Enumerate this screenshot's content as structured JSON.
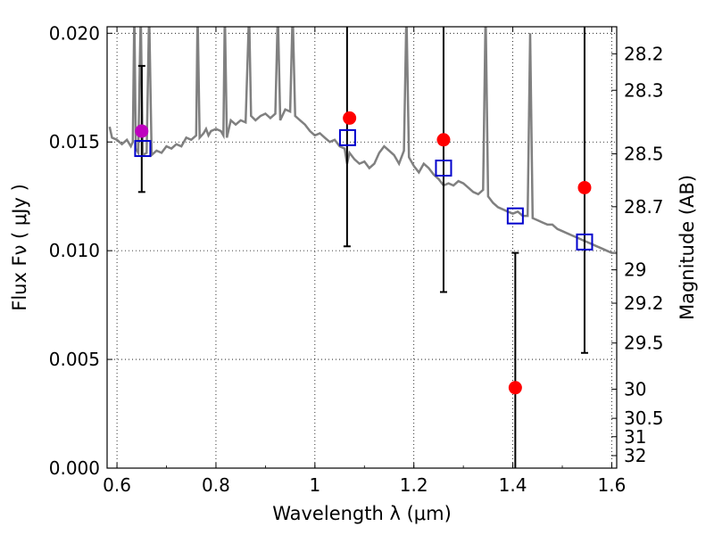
{
  "chart_data": {
    "type": "scatter",
    "xlabel": "Wavelength  λ (μm)",
    "ylabel": "Flux  Fν  ( μJy )",
    "y2label": "Magnitude (AB)",
    "xlim": [
      0.58,
      1.61
    ],
    "ylim": [
      0.0,
      0.0203
    ],
    "grid": true,
    "x_ticks": [
      {
        "value": 0.6,
        "label": "0.6"
      },
      {
        "value": 0.8,
        "label": "0.8"
      },
      {
        "value": 1.0,
        "label": "1"
      },
      {
        "value": 1.2,
        "label": "1.2"
      },
      {
        "value": 1.4,
        "label": "1.4"
      },
      {
        "value": 1.6,
        "label": "1.6"
      }
    ],
    "y_ticks": [
      {
        "value": 0.0,
        "label": "0.000"
      },
      {
        "value": 0.005,
        "label": "0.005"
      },
      {
        "value": 0.01,
        "label": "0.010"
      },
      {
        "value": 0.015,
        "label": "0.015"
      },
      {
        "value": 0.02,
        "label": "0.020"
      }
    ],
    "y2_ticks": [
      {
        "mag": 28.2,
        "label": "28.2"
      },
      {
        "mag": 28.3,
        "label": "28.3"
      },
      {
        "mag": 28.5,
        "label": "28.5"
      },
      {
        "mag": 28.7,
        "label": "28.7"
      },
      {
        "mag": 29.0,
        "label": "29"
      },
      {
        "mag": 29.2,
        "label": "29.2"
      },
      {
        "mag": 29.5,
        "label": "29.5"
      },
      {
        "mag": 30.0,
        "label": "30"
      },
      {
        "mag": 30.5,
        "label": "30.5"
      },
      {
        "mag": 31.0,
        "label": "31"
      },
      {
        "mag": 32.0,
        "label": "32"
      }
    ],
    "series": [
      {
        "type": "line",
        "color": "#808080",
        "points": [
          [
            0.585,
            0.0157
          ],
          [
            0.59,
            0.0152
          ],
          [
            0.6,
            0.0151
          ],
          [
            0.61,
            0.0149
          ],
          [
            0.62,
            0.0151
          ],
          [
            0.628,
            0.0148
          ],
          [
            0.632,
            0.015
          ],
          [
            0.635,
            0.021
          ],
          [
            0.638,
            0.0147
          ],
          [
            0.643,
            0.0145
          ],
          [
            0.648,
            0.021
          ],
          [
            0.652,
            0.0144
          ],
          [
            0.66,
            0.0145
          ],
          [
            0.665,
            0.021
          ],
          [
            0.67,
            0.0144
          ],
          [
            0.68,
            0.0146
          ],
          [
            0.69,
            0.0145
          ],
          [
            0.7,
            0.0148
          ],
          [
            0.71,
            0.0147
          ],
          [
            0.72,
            0.0149
          ],
          [
            0.73,
            0.0148
          ],
          [
            0.74,
            0.0152
          ],
          [
            0.75,
            0.0151
          ],
          [
            0.76,
            0.0153
          ],
          [
            0.763,
            0.021
          ],
          [
            0.767,
            0.0152
          ],
          [
            0.775,
            0.0154
          ],
          [
            0.78,
            0.0156
          ],
          [
            0.785,
            0.0153
          ],
          [
            0.79,
            0.0155
          ],
          [
            0.8,
            0.0156
          ],
          [
            0.81,
            0.0155
          ],
          [
            0.815,
            0.0153
          ],
          [
            0.818,
            0.021
          ],
          [
            0.822,
            0.0152
          ],
          [
            0.83,
            0.016
          ],
          [
            0.84,
            0.0158
          ],
          [
            0.85,
            0.016
          ],
          [
            0.86,
            0.0159
          ],
          [
            0.867,
            0.021
          ],
          [
            0.871,
            0.0162
          ],
          [
            0.88,
            0.016
          ],
          [
            0.89,
            0.0162
          ],
          [
            0.9,
            0.0163
          ],
          [
            0.91,
            0.0161
          ],
          [
            0.92,
            0.0163
          ],
          [
            0.925,
            0.021
          ],
          [
            0.93,
            0.016
          ],
          [
            0.94,
            0.0165
          ],
          [
            0.95,
            0.0164
          ],
          [
            0.955,
            0.021
          ],
          [
            0.96,
            0.0162
          ],
          [
            0.97,
            0.016
          ],
          [
            0.98,
            0.0158
          ],
          [
            0.99,
            0.0155
          ],
          [
            1.0,
            0.0153
          ],
          [
            1.01,
            0.0154
          ],
          [
            1.02,
            0.0152
          ],
          [
            1.03,
            0.015
          ],
          [
            1.04,
            0.0151
          ],
          [
            1.05,
            0.0148
          ],
          [
            1.06,
            0.0147
          ],
          [
            1.065,
            0.014
          ],
          [
            1.07,
            0.0145
          ],
          [
            1.08,
            0.0142
          ],
          [
            1.09,
            0.014
          ],
          [
            1.1,
            0.0141
          ],
          [
            1.11,
            0.0138
          ],
          [
            1.12,
            0.014
          ],
          [
            1.13,
            0.0145
          ],
          [
            1.14,
            0.0148
          ],
          [
            1.15,
            0.0146
          ],
          [
            1.16,
            0.0144
          ],
          [
            1.17,
            0.014
          ],
          [
            1.18,
            0.0146
          ],
          [
            1.185,
            0.021
          ],
          [
            1.19,
            0.0143
          ],
          [
            1.2,
            0.0139
          ],
          [
            1.21,
            0.0136
          ],
          [
            1.22,
            0.014
          ],
          [
            1.23,
            0.0138
          ],
          [
            1.24,
            0.0135
          ],
          [
            1.25,
            0.0133
          ],
          [
            1.26,
            0.013
          ],
          [
            1.27,
            0.0131
          ],
          [
            1.28,
            0.013
          ],
          [
            1.29,
            0.0132
          ],
          [
            1.3,
            0.0131
          ],
          [
            1.31,
            0.0129
          ],
          [
            1.32,
            0.0127
          ],
          [
            1.33,
            0.0126
          ],
          [
            1.34,
            0.0128
          ],
          [
            1.345,
            0.021
          ],
          [
            1.35,
            0.0125
          ],
          [
            1.36,
            0.0122
          ],
          [
            1.37,
            0.012
          ],
          [
            1.38,
            0.0119
          ],
          [
            1.39,
            0.0118
          ],
          [
            1.4,
            0.0117
          ],
          [
            1.41,
            0.0118
          ],
          [
            1.42,
            0.0116
          ],
          [
            1.43,
            0.0116
          ],
          [
            1.435,
            0.02
          ],
          [
            1.44,
            0.0115
          ],
          [
            1.45,
            0.0114
          ],
          [
            1.46,
            0.0113
          ],
          [
            1.47,
            0.0112
          ],
          [
            1.48,
            0.0112
          ],
          [
            1.49,
            0.011
          ],
          [
            1.5,
            0.0109
          ],
          [
            1.51,
            0.0108
          ],
          [
            1.52,
            0.0107
          ],
          [
            1.53,
            0.0106
          ],
          [
            1.54,
            0.0105
          ],
          [
            1.55,
            0.0104
          ],
          [
            1.56,
            0.0103
          ],
          [
            1.57,
            0.0102
          ],
          [
            1.58,
            0.0101
          ],
          [
            1.59,
            0.01
          ],
          [
            1.6,
            0.0099
          ],
          [
            1.61,
            0.0099
          ]
        ]
      },
      {
        "type": "errorbar",
        "color": "#000000",
        "items": [
          {
            "x": 0.65,
            "y": 0.0155,
            "yerr_low": 0.0127,
            "yerr_high": 0.0185
          },
          {
            "x": 1.065,
            "y": 0.0161,
            "yerr_low": 0.0102,
            "yerr_high": 0.0203
          },
          {
            "x": 1.26,
            "y": 0.0151,
            "yerr_low": 0.0081,
            "yerr_high": 0.0203
          },
          {
            "x": 1.405,
            "y": 0.0037,
            "yerr_low": 0.0,
            "yerr_high": 0.0099
          },
          {
            "x": 1.545,
            "y": 0.0129,
            "yerr_low": 0.0053,
            "yerr_high": 0.0203
          }
        ]
      },
      {
        "type": "scatter",
        "marker": "circle",
        "points": [
          {
            "x": 0.65,
            "y": 0.0155,
            "color": "#bf00bf"
          },
          {
            "x": 1.07,
            "y": 0.0161,
            "color": "#ff0000"
          },
          {
            "x": 1.26,
            "y": 0.0151,
            "color": "#ff0000"
          },
          {
            "x": 1.405,
            "y": 0.0037,
            "color": "#ff0000"
          },
          {
            "x": 1.545,
            "y": 0.0129,
            "color": "#ff0000"
          }
        ]
      },
      {
        "type": "scatter",
        "marker": "square",
        "color": "#0000cc",
        "points": [
          {
            "x": 0.652,
            "y": 0.0147
          },
          {
            "x": 1.066,
            "y": 0.0152
          },
          {
            "x": 1.26,
            "y": 0.0138
          },
          {
            "x": 1.405,
            "y": 0.0116
          },
          {
            "x": 1.545,
            "y": 0.0104
          }
        ]
      }
    ]
  }
}
